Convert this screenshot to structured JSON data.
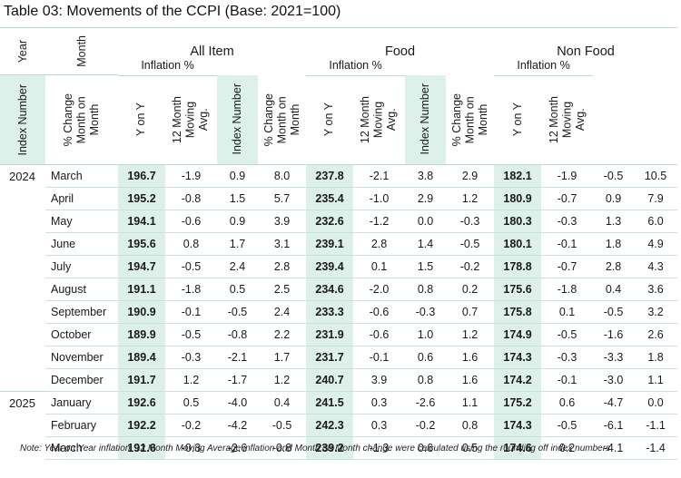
{
  "title": "Table 03: Movements of the CCPI (Base: 2021=100)",
  "headers": {
    "year": "Year",
    "month": "Month",
    "groups": [
      "All Item",
      "Food",
      "Non Food"
    ],
    "inflation": "Inflation %",
    "index_number": "Index Number",
    "mom": [
      "% Change",
      "Month on",
      "Month"
    ],
    "yoy": "Y on Y",
    "ma": [
      "12 Month",
      "Moving",
      "Avg."
    ]
  },
  "rows": [
    {
      "year": "2024",
      "month": "March",
      "all": [
        "196.7",
        "-1.9",
        "0.9",
        "8.0"
      ],
      "food": [
        "237.8",
        "-2.1",
        "3.8",
        "2.9"
      ],
      "nonfood": [
        "182.1",
        "-1.9",
        "-0.5",
        "10.5"
      ]
    },
    {
      "year": "",
      "month": "April",
      "all": [
        "195.2",
        "-0.8",
        "1.5",
        "5.7"
      ],
      "food": [
        "235.4",
        "-1.0",
        "2.9",
        "1.2"
      ],
      "nonfood": [
        "180.9",
        "-0.7",
        "0.9",
        "7.9"
      ]
    },
    {
      "year": "",
      "month": "May",
      "all": [
        "194.1",
        "-0.6",
        "0.9",
        "3.9"
      ],
      "food": [
        "232.6",
        "-1.2",
        "0.0",
        "-0.3"
      ],
      "nonfood": [
        "180.3",
        "-0.3",
        "1.3",
        "6.0"
      ]
    },
    {
      "year": "",
      "month": "June",
      "all": [
        "195.6",
        "0.8",
        "1.7",
        "3.1"
      ],
      "food": [
        "239.1",
        "2.8",
        "1.4",
        "-0.5"
      ],
      "nonfood": [
        "180.1",
        "-0.1",
        "1.8",
        "4.9"
      ]
    },
    {
      "year": "",
      "month": "July",
      "all": [
        "194.7",
        "-0.5",
        "2.4",
        "2.8"
      ],
      "food": [
        "239.4",
        "0.1",
        "1.5",
        "-0.2"
      ],
      "nonfood": [
        "178.8",
        "-0.7",
        "2.8",
        "4.3"
      ]
    },
    {
      "year": "",
      "month": "August",
      "all": [
        "191.1",
        "-1.8",
        "0.5",
        "2.5"
      ],
      "food": [
        "234.6",
        "-2.0",
        "0.8",
        "0.2"
      ],
      "nonfood": [
        "175.6",
        "-1.8",
        "0.4",
        "3.6"
      ]
    },
    {
      "year": "",
      "month": "September",
      "all": [
        "190.9",
        "-0.1",
        "-0.5",
        "2.4"
      ],
      "food": [
        "233.3",
        "-0.6",
        "-0.3",
        "0.7"
      ],
      "nonfood": [
        "175.8",
        "0.1",
        "-0.5",
        "3.2"
      ]
    },
    {
      "year": "",
      "month": "October",
      "all": [
        "189.9",
        "-0.5",
        "-0.8",
        "2.2"
      ],
      "food": [
        "231.9",
        "-0.6",
        "1.0",
        "1.2"
      ],
      "nonfood": [
        "174.9",
        "-0.5",
        "-1.6",
        "2.6"
      ]
    },
    {
      "year": "",
      "month": "November",
      "all": [
        "189.4",
        "-0.3",
        "-2.1",
        "1.7"
      ],
      "food": [
        "231.7",
        "-0.1",
        "0.6",
        "1.6"
      ],
      "nonfood": [
        "174.3",
        "-0.3",
        "-3.3",
        "1.8"
      ]
    },
    {
      "year": "",
      "month": "December",
      "all": [
        "191.7",
        "1.2",
        "-1.7",
        "1.2"
      ],
      "food": [
        "240.7",
        "3.9",
        "0.8",
        "1.6"
      ],
      "nonfood": [
        "174.2",
        "-0.1",
        "-3.0",
        "1.1"
      ]
    },
    {
      "year": "2025",
      "month": "January",
      "all": [
        "192.6",
        "0.5",
        "-4.0",
        "0.4"
      ],
      "food": [
        "241.5",
        "0.3",
        "-2.6",
        "1.1"
      ],
      "nonfood": [
        "175.2",
        "0.6",
        "-4.7",
        "0.0"
      ]
    },
    {
      "year": "",
      "month": "February",
      "all": [
        "192.2",
        "-0.2",
        "-4.2",
        "-0.5"
      ],
      "food": [
        "242.3",
        "0.3",
        "-0.2",
        "0.8"
      ],
      "nonfood": [
        "174.3",
        "-0.5",
        "-6.1",
        "-1.1"
      ]
    },
    {
      "year": "",
      "month": "March",
      "all": [
        "191.6",
        "-0.3",
        "-2.6",
        "-0.8"
      ],
      "food": [
        "239.2",
        "-1.3",
        "0.6",
        "0.5"
      ],
      "nonfood": [
        "174.6",
        "0.2",
        "-4.1",
        "-1.4"
      ]
    }
  ],
  "note": "Note: Year on Year inflation, 12 Month Moving Average inflation and Month on Month change were calculated using the rounding off index numbers",
  "colors": {
    "shade": "#ddf0ea",
    "rule": "#b9dccf"
  }
}
